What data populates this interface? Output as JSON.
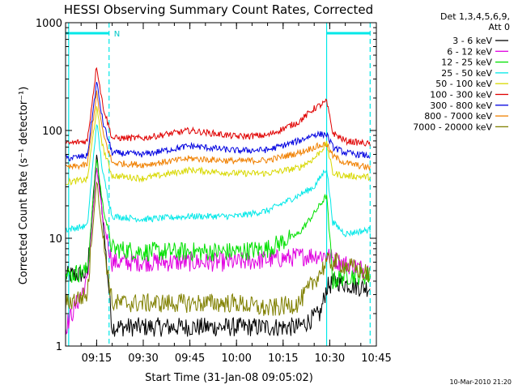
{
  "chart_data": {
    "type": "line",
    "title": "HESSI Observing Summary Count Rates, Corrected",
    "xlabel": "Start Time (31-Jan-08 09:05:02)",
    "ylabel": "Corrected Count Rate (s⁻¹ detector⁻¹)",
    "yscale": "log",
    "ylim": [
      1,
      1000
    ],
    "xlim_minutes": [
      "09:05",
      "10:45"
    ],
    "x_ticks": [
      "09:15",
      "09:30",
      "09:45",
      "10:00",
      "10:15",
      "10:30",
      "10:45"
    ],
    "y_ticks": [
      "1",
      "10",
      "100",
      "1000"
    ],
    "footer": "10-Mar-2010 21:20",
    "legend": {
      "header1": "Det 1,3,4,5,6,9,",
      "header2": "Att 0",
      "placement": "right"
    },
    "annotations": {
      "night_marker": "N",
      "cyan_bars": [
        [
          "09:05",
          "09:19"
        ],
        [
          "10:29",
          "10:43"
        ]
      ],
      "dashed_vlines": [
        "09:19",
        "10:43"
      ],
      "solid_vlines": [
        "09:06",
        "10:29"
      ]
    },
    "series": [
      {
        "name": "3 - 6 keV",
        "color": "#000000",
        "x": [
          "09:05",
          "09:12",
          "09:15",
          "09:17",
          "09:20",
          "09:25",
          "09:45",
          "10:05",
          "10:20",
          "10:27",
          "10:29",
          "10:32",
          "10:40",
          "10:43"
        ],
        "values": [
          4.5,
          4.7,
          60,
          15,
          1.5,
          1.5,
          1.5,
          1.5,
          1.5,
          2,
          3.5,
          4,
          3.5,
          3.5
        ]
      },
      {
        "name": "6 - 12 keV",
        "color": "#e000e0",
        "x": [
          "09:05",
          "09:12",
          "09:15",
          "09:17",
          "09:20",
          "09:30",
          "09:45",
          "10:00",
          "10:15",
          "10:25",
          "10:29",
          "10:33",
          "10:43"
        ],
        "values": [
          1.5,
          4,
          45,
          15,
          6,
          6,
          6,
          6,
          6.5,
          7,
          7,
          6,
          5
        ]
      },
      {
        "name": "12 - 25 keV",
        "color": "#00e000",
        "x": [
          "09:05",
          "09:12",
          "09:15",
          "09:17",
          "09:20",
          "09:30",
          "09:45",
          "10:00",
          "10:10",
          "10:20",
          "10:25",
          "10:29",
          "10:31",
          "10:35",
          "10:43"
        ],
        "values": [
          4.5,
          5,
          55,
          20,
          8,
          7.5,
          7.5,
          7.5,
          8,
          11,
          17,
          25,
          4,
          4.5,
          4.5
        ]
      },
      {
        "name": "25 - 50 keV",
        "color": "#00e8e8",
        "x": [
          "09:05",
          "09:12",
          "09:15",
          "09:17",
          "09:20",
          "09:30",
          "09:45",
          "10:00",
          "10:10",
          "10:20",
          "10:25",
          "10:29",
          "10:31",
          "10:35",
          "10:43"
        ],
        "values": [
          12,
          13,
          120,
          40,
          16,
          15,
          16,
          16,
          18,
          25,
          30,
          45,
          14,
          11,
          12
        ]
      },
      {
        "name": "50 - 100 keV",
        "color": "#d8d800",
        "x": [
          "09:05",
          "09:12",
          "09:15",
          "09:17",
          "09:20",
          "09:30",
          "09:45",
          "10:00",
          "10:10",
          "10:20",
          "10:25",
          "10:29",
          "10:31",
          "10:35",
          "10:43"
        ],
        "values": [
          33,
          35,
          160,
          70,
          38,
          36,
          43,
          40,
          40,
          45,
          55,
          75,
          40,
          38,
          37
        ]
      },
      {
        "name": "100 - 300 keV",
        "color": "#e00000",
        "x": [
          "09:05",
          "09:12",
          "09:15",
          "09:17",
          "09:20",
          "09:30",
          "09:45",
          "10:00",
          "10:10",
          "10:20",
          "10:25",
          "10:29",
          "10:31",
          "10:35",
          "10:43"
        ],
        "values": [
          75,
          80,
          400,
          170,
          85,
          85,
          100,
          88,
          90,
          120,
          160,
          185,
          95,
          80,
          75
        ]
      },
      {
        "name": "300 - 800 keV",
        "color": "#0000e0",
        "x": [
          "09:05",
          "09:12",
          "09:15",
          "09:17",
          "09:20",
          "09:30",
          "09:45",
          "10:00",
          "10:10",
          "10:20",
          "10:25",
          "10:29",
          "10:31",
          "10:35",
          "10:43"
        ],
        "values": [
          55,
          58,
          280,
          120,
          62,
          60,
          72,
          65,
          66,
          80,
          92,
          92,
          70,
          62,
          58
        ]
      },
      {
        "name": "800 - 7000 keV",
        "color": "#f08000",
        "x": [
          "09:05",
          "09:12",
          "09:15",
          "09:17",
          "09:20",
          "09:30",
          "09:45",
          "10:00",
          "10:10",
          "10:20",
          "10:25",
          "10:29",
          "10:31",
          "10:35",
          "10:43"
        ],
        "values": [
          45,
          48,
          220,
          95,
          50,
          48,
          55,
          52,
          53,
          62,
          70,
          75,
          58,
          50,
          45
        ]
      },
      {
        "name": "7000 - 20000 keV",
        "color": "#808000",
        "x": [
          "09:05",
          "09:12",
          "09:15",
          "09:17",
          "09:20",
          "09:30",
          "09:45",
          "10:00",
          "10:10",
          "10:20",
          "10:25",
          "10:29",
          "10:32",
          "10:40",
          "10:43"
        ],
        "values": [
          2.5,
          3,
          35,
          10,
          2.5,
          2.5,
          2.5,
          2.5,
          2.2,
          2.5,
          4,
          6,
          6,
          5,
          4.5
        ]
      }
    ]
  }
}
